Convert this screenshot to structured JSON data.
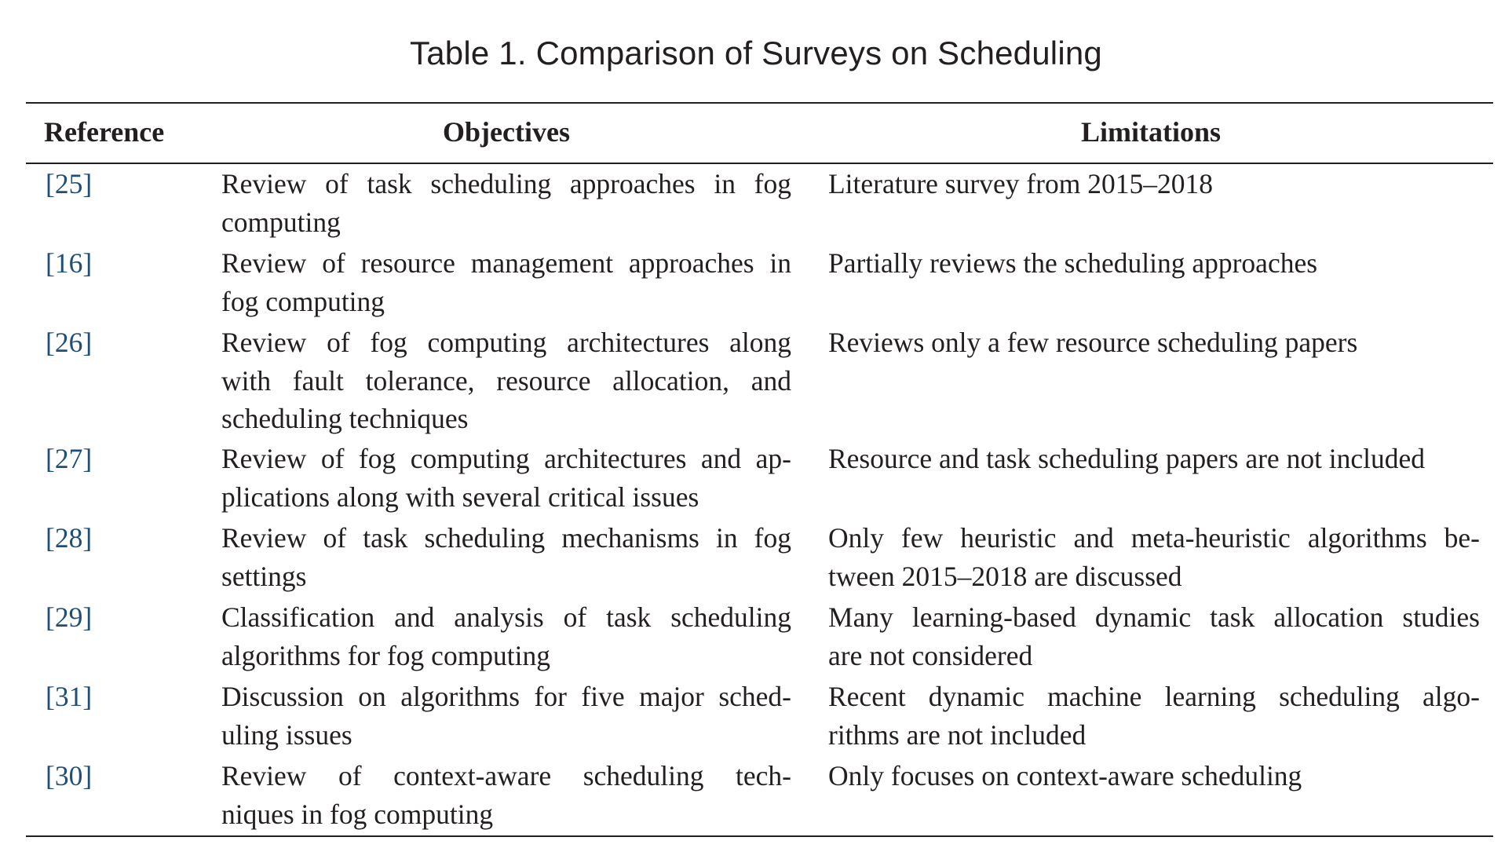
{
  "caption": "Table 1.  Comparison of Surveys on Scheduling",
  "columns": {
    "reference": "Reference",
    "objectives": "Objectives",
    "limitations": "Limitations"
  },
  "rows": [
    {
      "ref": "[25]",
      "objectives": [
        "Review of task scheduling approaches in fog",
        "computing"
      ],
      "limitations": [
        "Literature survey from 2015–2018"
      ]
    },
    {
      "ref": "[16]",
      "objectives": [
        "Review of resource management approaches in",
        "fog computing"
      ],
      "limitations": [
        "Partially reviews the scheduling approaches"
      ]
    },
    {
      "ref": "[26]",
      "objectives": [
        "Review of fog computing architectures along",
        "with fault tolerance, resource allocation, and",
        "scheduling techniques"
      ],
      "limitations": [
        "Reviews only a few resource scheduling papers"
      ]
    },
    {
      "ref": "[27]",
      "objectives": [
        "Review of fog computing architectures and ap-",
        "plications along with several critical issues"
      ],
      "limitations": [
        "Resource and task scheduling papers are not included"
      ]
    },
    {
      "ref": "[28]",
      "objectives": [
        "Review of task scheduling mechanisms in fog",
        "settings"
      ],
      "limitations": [
        "Only few heuristic and meta-heuristic algorithms be-",
        "tween 2015–2018 are discussed"
      ]
    },
    {
      "ref": "[29]",
      "objectives": [
        "Classification and analysis of task scheduling",
        "algorithms for fog computing"
      ],
      "limitations": [
        "Many learning-based dynamic task allocation studies",
        "are not considered"
      ]
    },
    {
      "ref": "[31]",
      "objectives": [
        "Discussion on algorithms for five major sched-",
        "uling issues"
      ],
      "limitations": [
        "Recent dynamic machine learning scheduling algo-",
        "rithms are not included"
      ]
    },
    {
      "ref": "[30]",
      "objectives": [
        "Review of context-aware scheduling tech-",
        "niques in fog computing"
      ],
      "limitations": [
        "Only focuses on context-aware scheduling"
      ]
    }
  ]
}
